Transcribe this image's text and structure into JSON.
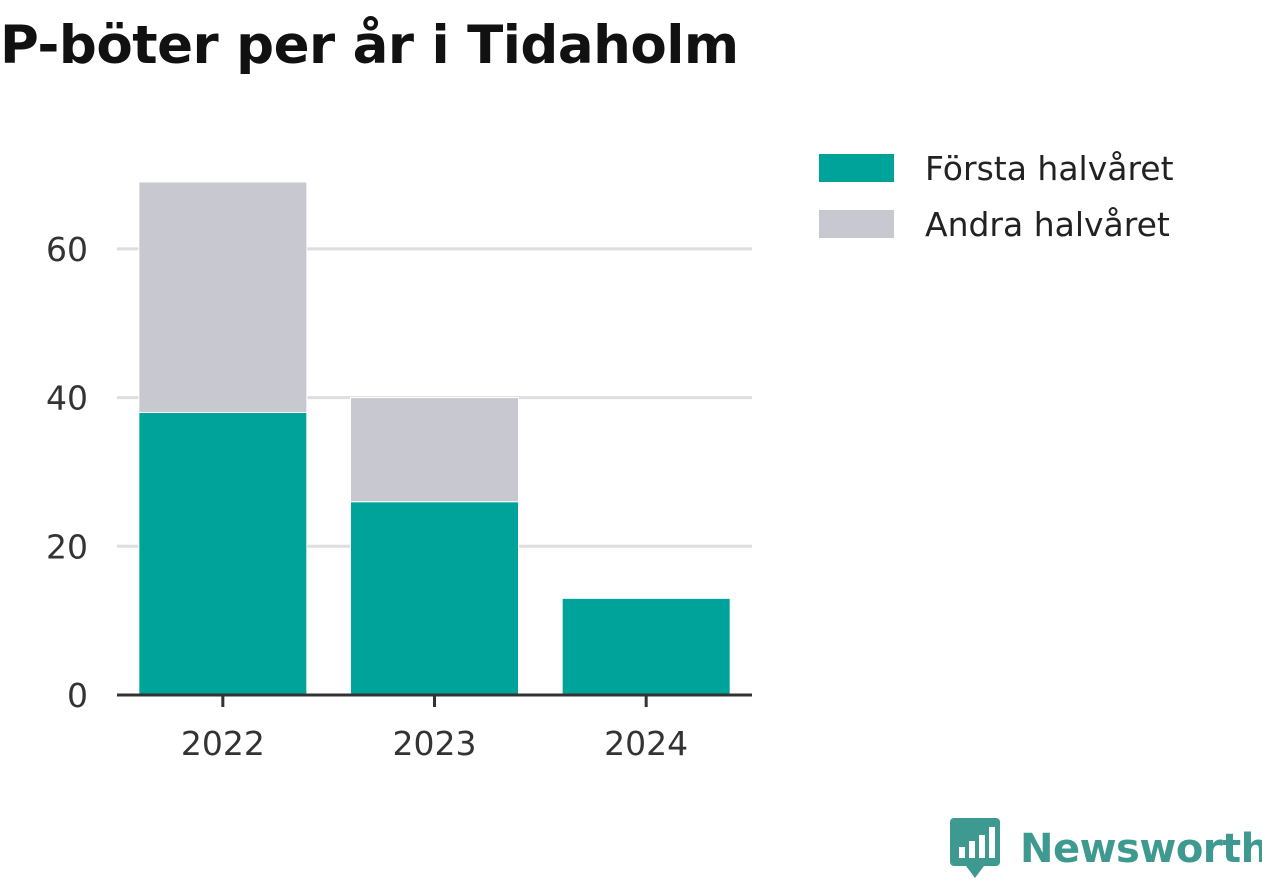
{
  "title": "P-böter per år i Tidaholm",
  "chart_data": {
    "type": "bar",
    "stacked": true,
    "title": "P-böter per år i Tidaholm",
    "xlabel": "",
    "ylabel": "",
    "categories": [
      "2022",
      "2023",
      "2024"
    ],
    "series": [
      {
        "name": "Första halvåret",
        "values": [
          38,
          26,
          13
        ],
        "color": "#00a39a"
      },
      {
        "name": "Andra halvåret",
        "values": [
          31,
          14,
          0
        ],
        "color": "#c8c8d0"
      }
    ],
    "ylim": [
      0,
      69
    ],
    "yticks": [
      0,
      20,
      40,
      60
    ],
    "grid": true,
    "legend_position": "right"
  },
  "legend": {
    "items": [
      {
        "label": "Första halvåret",
        "color": "#00a39a"
      },
      {
        "label": "Andra halvåret",
        "color": "#c8c8d0"
      }
    ]
  },
  "brand": {
    "name": "Newsworthy",
    "icon": "newsworthy-logo-icon",
    "color": "#3e9a90"
  }
}
